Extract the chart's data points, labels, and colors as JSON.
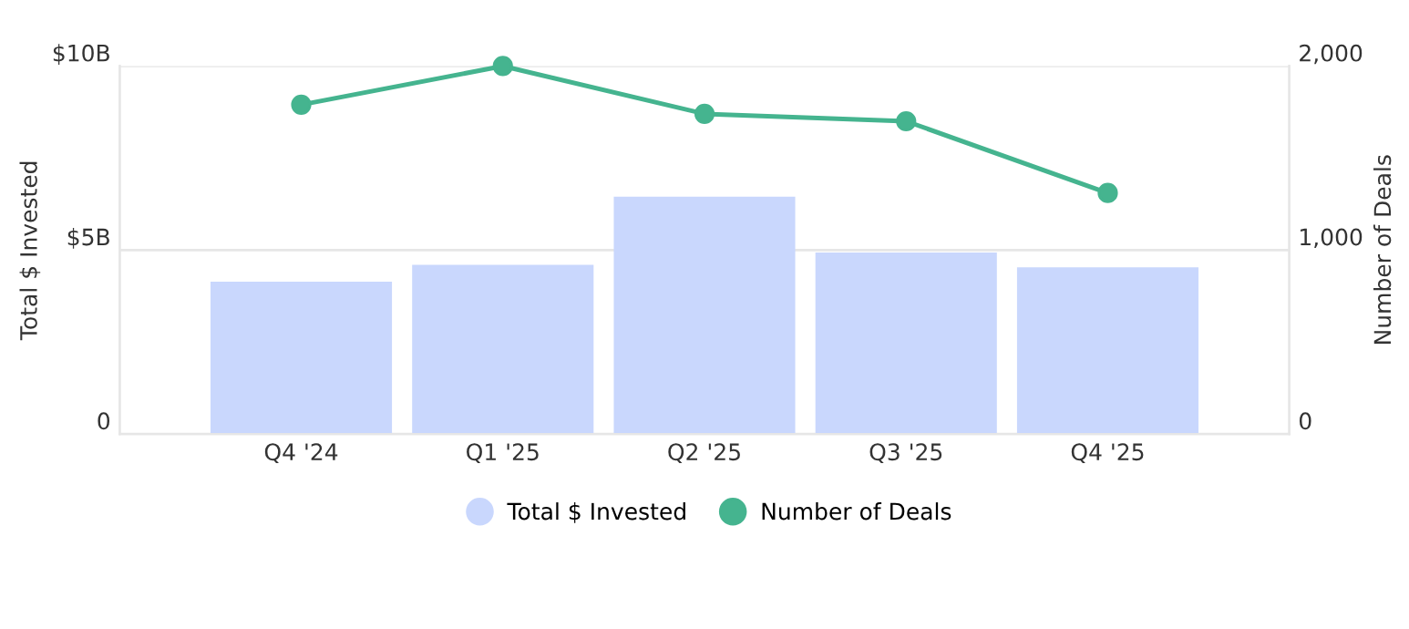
{
  "chart_data": {
    "type": "bar",
    "ylabel": "Total $ Invested",
    "y2label": "Number of Deals",
    "categories": [
      "Q4 '24",
      "Q1 '25",
      "Q2 '25",
      "Q3 '25",
      "Q4 '25"
    ],
    "series": [
      {
        "name": "Total $ Invested",
        "color": "#c9d7fd",
        "values": [
          4.14,
          4.6,
          6.45,
          4.93,
          4.53
        ]
      },
      {
        "name": "Number of Deals",
        "type": "line",
        "axis": "y2",
        "color": "#45b48f",
        "values": [
          1790,
          2000,
          1740,
          1700,
          1310
        ],
        "marker": "circle"
      }
    ],
    "ylim": [
      0,
      10
    ],
    "yticks": [
      {
        "value": 0,
        "label": "0"
      },
      {
        "value": 5,
        "label": "$5B"
      },
      {
        "value": 10,
        "label": "$10B"
      }
    ],
    "y2lim": [
      0,
      2000
    ],
    "y2ticks": [
      {
        "value": 0,
        "label": "0"
      },
      {
        "value": 1000,
        "label": "1,000"
      },
      {
        "value": 2000,
        "label": "2,000"
      }
    ],
    "grid": "y",
    "legend": "bottom"
  }
}
